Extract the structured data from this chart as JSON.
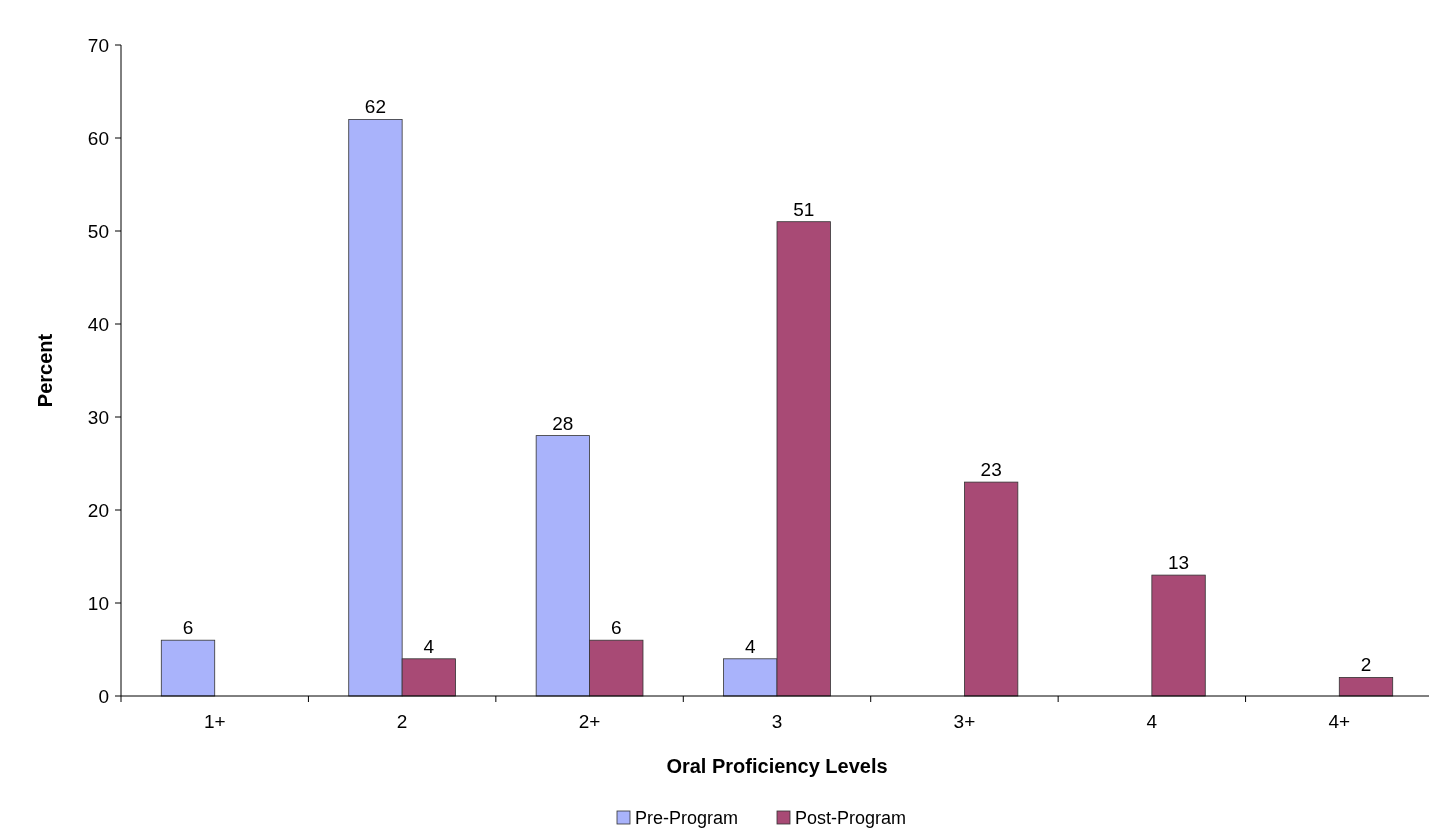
{
  "chart_data": {
    "type": "bar",
    "xlabel": "Oral Proficiency Levels",
    "ylabel": "Percent",
    "categories": [
      "1+",
      "2",
      "2+",
      "3",
      "3+",
      "4",
      "4+"
    ],
    "series": [
      {
        "name": "Pre-Program",
        "color": "#a9b3fb",
        "values": [
          6,
          62,
          28,
          4,
          null,
          null,
          null
        ]
      },
      {
        "name": "Post-Program",
        "color": "#a84a75",
        "values": [
          null,
          4,
          6,
          51,
          23,
          13,
          2
        ]
      }
    ],
    "ylim": [
      0,
      70
    ],
    "yticks": [
      0,
      10,
      20,
      30,
      40,
      50,
      60,
      70
    ],
    "grid": false,
    "legend": "bottom",
    "data_labels": true
  }
}
